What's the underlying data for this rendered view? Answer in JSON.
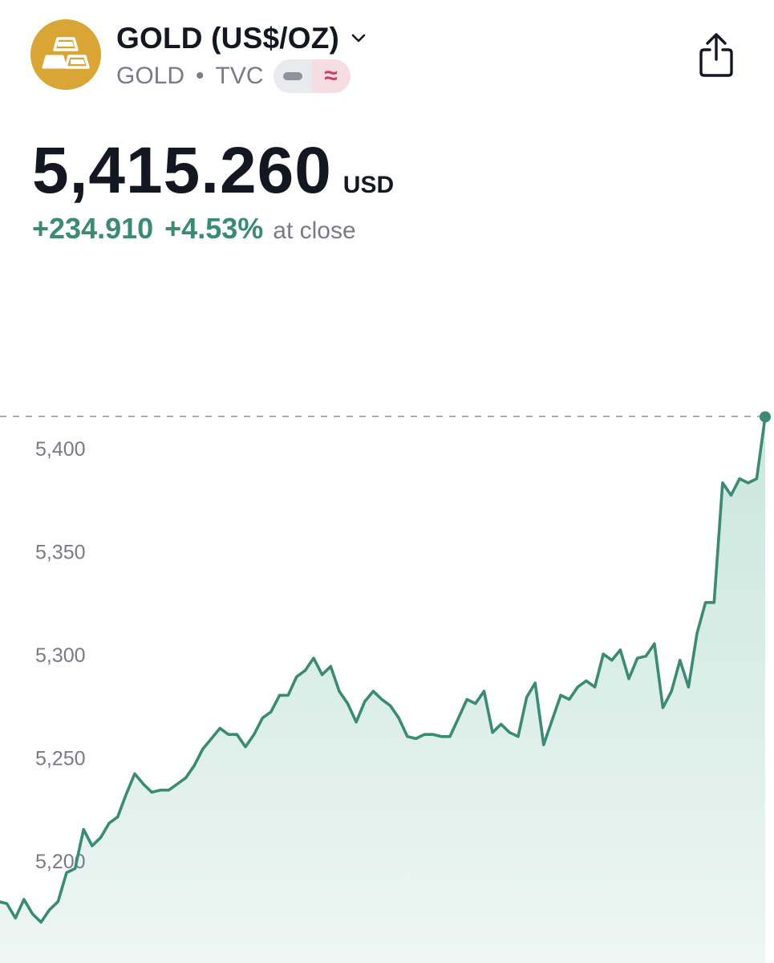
{
  "header": {
    "title": "GOLD (US$/OZ)",
    "symbol": "GOLD",
    "exchange": "TVC",
    "separator": "•",
    "toggle_right_symbol": "≈",
    "logo_icon": "gold-bars-icon",
    "share_icon": "share-icon",
    "dropdown_icon": "chevron-down-icon"
  },
  "quote": {
    "price": "5,415.260",
    "currency": "USD",
    "change": "+234.910",
    "change_percent": "+4.53%",
    "status": "at close"
  },
  "colors": {
    "logo_bg": "#d9a534",
    "positive": "#3a8a74",
    "line": "#3a8a74",
    "muted": "#787b86"
  },
  "chart_data": {
    "type": "area",
    "ylim": [
      5160,
      5420
    ],
    "y_ticks": [
      "5,400",
      "5,350",
      "5,300",
      "5,250",
      "5,200"
    ],
    "y_tick_values": [
      5400,
      5350,
      5300,
      5250,
      5200
    ],
    "last_value": 5415.26,
    "values": [
      5180,
      5179,
      5172,
      5181,
      5174,
      5170,
      5176,
      5180,
      5194,
      5196,
      5215,
      5207,
      5211,
      5218,
      5221,
      5232,
      5242,
      5237,
      5233,
      5234,
      5234,
      5237,
      5240,
      5246,
      5254,
      5259,
      5264,
      5261,
      5261,
      5255,
      5261,
      5269,
      5272,
      5280,
      5280,
      5289,
      5292,
      5298,
      5290,
      5294,
      5282,
      5276,
      5267,
      5277,
      5282,
      5278,
      5275,
      5269,
      5260,
      5259,
      5261,
      5261,
      5260,
      5260,
      5269,
      5278,
      5276,
      5282,
      5262,
      5266,
      5262,
      5260,
      5279,
      5286,
      5256,
      5268,
      5280,
      5278,
      5284,
      5287,
      5284,
      5300,
      5297,
      5302,
      5288,
      5298,
      5299,
      5305,
      5274,
      5282,
      5297,
      5284,
      5310,
      5325,
      5325,
      5383,
      5377,
      5385,
      5383,
      5385,
      5415
    ]
  }
}
